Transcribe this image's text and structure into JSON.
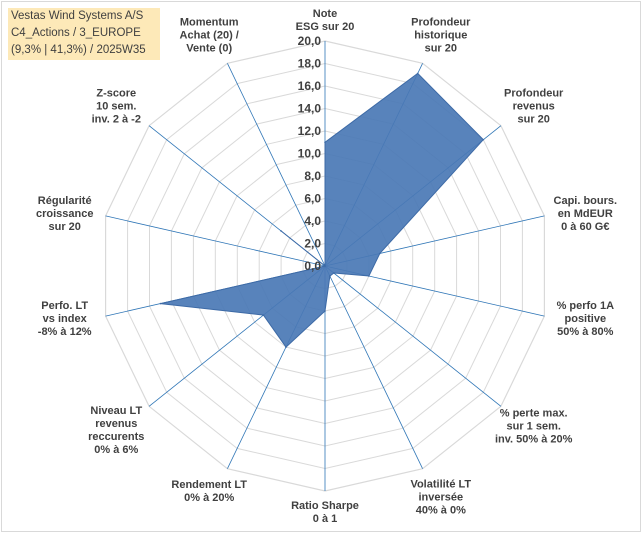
{
  "info": {
    "line1": "Vestas Wind Systems A/S",
    "line2": "C4_Actions / 3_EUROPE",
    "line3": "(9,3% | 41,3%) / 2025W35"
  },
  "colors": {
    "fill": "#4a78b5",
    "grid": "#d9d9d9",
    "spoke": "#2e75b6",
    "text": "#404040"
  },
  "chart_data": {
    "type": "radar",
    "rlim": [
      0,
      20
    ],
    "tick_step": 2,
    "tick_labels": [
      "0,0",
      "2,0",
      "4,0",
      "6,0",
      "8,0",
      "10,0",
      "12,0",
      "14,0",
      "16,0",
      "18,0",
      "20,0"
    ],
    "grid": true,
    "categories": [
      [
        "Note",
        "ESG sur 20"
      ],
      [
        "Profondeur",
        "historique",
        "sur 20"
      ],
      [
        "Profondeur",
        "revenus",
        "sur 20"
      ],
      [
        "Capi. bours.",
        "en MdEUR",
        "0 à 60 G€"
      ],
      [
        "% perfo 1A",
        "positive",
        "50% à 80%"
      ],
      [
        "% perte max.",
        "sur 1 sem.",
        "inv. 50% à 20%"
      ],
      [
        "Volatilité LT",
        "inversée",
        "40% à 0%"
      ],
      [
        "Ratio Sharpe",
        "0 à 1"
      ],
      [
        "Rendement LT",
        "0% à 20%"
      ],
      [
        "Niveau LT",
        "revenus",
        "reccurents",
        "0% à 6%"
      ],
      [
        "Perfo. LT",
        "vs index",
        "-8% à 12%"
      ],
      [
        "Régularité",
        "croissance",
        "sur 20"
      ],
      [
        "Z-score",
        "10 sem.",
        "inv. 2 à -2"
      ],
      [
        "Momentum",
        "Achat (20) /",
        "Vente (0)"
      ]
    ],
    "values": [
      11,
      19,
      18,
      5,
      4,
      1,
      1,
      4,
      8,
      7,
      15,
      0,
      5,
      0
    ]
  }
}
